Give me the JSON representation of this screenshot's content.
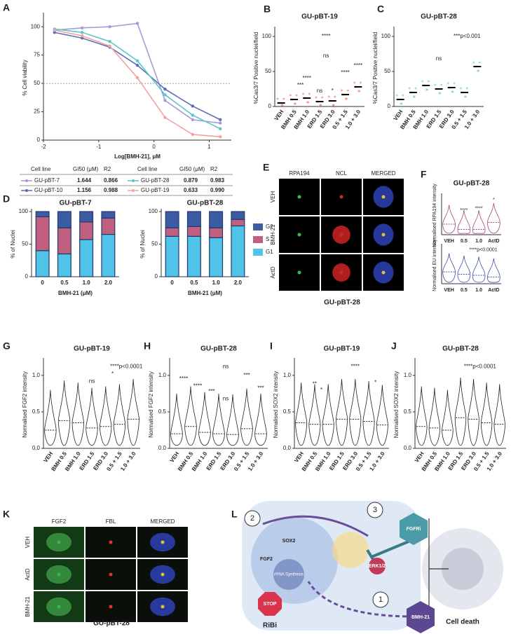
{
  "chart_data": [
    {
      "type": "line",
      "panel": "A",
      "xlabel": "Log[BMH-21], μM",
      "ylabel": "% Cell viability",
      "x": [
        -1.8,
        -1.3,
        -0.8,
        -0.3,
        0.2,
        0.7,
        1.2
      ],
      "xlim": [
        -2,
        1.4
      ],
      "xticks": [
        -2,
        -1,
        0,
        1
      ],
      "ylim": [
        0,
        110
      ],
      "yticks": [
        0,
        25,
        50,
        75,
        100
      ],
      "hline": 50,
      "series": [
        {
          "name": "GU-pBT-7",
          "color": "#a79ad8",
          "values": [
            97,
            99,
            100,
            103,
            35,
            18,
            15
          ],
          "gi50": "1.644",
          "r2": "0.866"
        },
        {
          "name": "GU-pBT-10",
          "color": "#5b6fb5",
          "values": [
            95,
            90,
            82,
            66,
            45,
            30,
            18
          ],
          "gi50": "1.156",
          "r2": "0.988"
        },
        {
          "name": "GU-pBT-28",
          "color": "#5cc6cc",
          "values": [
            98,
            95,
            87,
            70,
            40,
            22,
            10
          ],
          "gi50": "0.879",
          "r2": "0.983"
        },
        {
          "name": "GU-pBT-19",
          "color": "#f2a3a0",
          "values": [
            97,
            92,
            83,
            55,
            20,
            5,
            3
          ],
          "gi50": "0.633",
          "r2": "0.990"
        }
      ],
      "table_header": [
        "Cell line",
        "GI50 (μM)",
        "R2"
      ]
    },
    {
      "type": "strip",
      "panel": "B",
      "title": "GU-pBT-19",
      "ylabel": "%Cas3/7 Positive nuclei/field",
      "color": "#f08a7a",
      "categories": [
        "VEH",
        "BMH 0.5",
        "BMH 1.0",
        "ERD 1.5",
        "ERD 3.0",
        "0.5 + 1.5",
        "1.0 + 3.0"
      ],
      "values": [
        5,
        10,
        12,
        7,
        8,
        17,
        28
      ],
      "ylim": [
        0,
        110
      ],
      "yticks": [
        0,
        50,
        100
      ],
      "annotations": [
        "***",
        "****",
        "ns",
        "*",
        "****",
        "****",
        "ns",
        "****"
      ]
    },
    {
      "type": "strip",
      "panel": "C",
      "title": "GU-pBT-28",
      "ylabel": "%Cas3/7 Positive nuclei/field",
      "color": "#7fd0dd",
      "categories": [
        "VEH",
        "BMH 0.5",
        "BMH 1.0",
        "ERD 1.5",
        "ERD 3.0",
        "0.5 + 1.5",
        "1.0 + 3.0"
      ],
      "values": [
        10,
        20,
        30,
        25,
        27,
        20,
        57
      ],
      "ylim": [
        0,
        110
      ],
      "yticks": [
        0,
        50,
        100
      ],
      "annotations": [
        "***p<0.001",
        "ns"
      ]
    },
    {
      "type": "stacked_bar",
      "panel": "D",
      "title": "GU-pBT-7",
      "ylabel": "% of Nuclei",
      "xlabel": "BMH-21 (μM)",
      "categories": [
        "0",
        "0.5",
        "1.0",
        "2.0"
      ],
      "ylim": [
        0,
        100
      ],
      "yticks": [
        0,
        50,
        100
      ],
      "series": [
        {
          "name": "G1",
          "color": "#4fc3e8",
          "values": [
            40,
            35,
            57,
            65
          ]
        },
        {
          "name": "S",
          "color": "#c0607e",
          "values": [
            52,
            40,
            27,
            25
          ]
        },
        {
          "name": "G2",
          "color": "#3b5ba3",
          "values": [
            8,
            25,
            16,
            10
          ]
        }
      ]
    },
    {
      "type": "stacked_bar",
      "title": "GU-pBT-28",
      "ylabel": "% of Nuclei",
      "xlabel": "BMH-21 (μM)",
      "legend": "right",
      "categories": [
        "0",
        "0.5",
        "1.0",
        "2.0"
      ],
      "ylim": [
        0,
        100
      ],
      "yticks": [
        0,
        50,
        100
      ],
      "series": [
        {
          "name": "G1",
          "color": "#4fc3e8",
          "values": [
            62,
            62,
            60,
            78
          ]
        },
        {
          "name": "S",
          "color": "#c0607e",
          "values": [
            13,
            15,
            15,
            10
          ]
        },
        {
          "name": "G2",
          "color": "#3b5ba3",
          "values": [
            25,
            23,
            25,
            12
          ]
        }
      ]
    },
    {
      "type": "violin",
      "panel": "F",
      "title": "GU-pBT-28",
      "ylabel": "Normalised RPA194 intensity",
      "color": "#a8437e",
      "categories": [
        "VEH",
        "0.5",
        "1.0",
        "ActD"
      ],
      "values": [
        0.3,
        0.15,
        0.15,
        0.35
      ],
      "ylim": [
        0,
        1.1
      ],
      "annotations": [
        "****",
        "****",
        "*"
      ]
    },
    {
      "type": "violin",
      "ylabel": "Normalised EU intensity",
      "color": "#3b4fa8",
      "categories": [
        "VEH",
        "0.5",
        "1.0",
        "ActD"
      ],
      "values": [
        0.35,
        0.28,
        0.25,
        0.2
      ],
      "ylim": [
        0,
        1.1
      ],
      "annotations": [
        "****p<0.0001"
      ]
    },
    {
      "type": "violin",
      "panel": "G",
      "title": "GU-pBT-19",
      "ylabel": "Normalised FGF2 intensity",
      "color": "#222",
      "categories": [
        "VEH",
        "BMH 0.5",
        "BMH 1.0",
        "ERD 1.5",
        "ERD 3.0",
        "0.5 + 1.5",
        "1.0 + 3.0"
      ],
      "values": [
        0.25,
        0.38,
        0.35,
        0.28,
        0.3,
        0.33,
        0.4
      ],
      "ylim": [
        0,
        1.2
      ],
      "yticks": [
        {
          "value": 0,
          "label": "0.0"
        },
        0.5,
        {
          "value": 1,
          "label": "1.0"
        }
      ],
      "annotations": [
        "****p<0.0001",
        "ns",
        "*"
      ]
    },
    {
      "type": "violin",
      "panel": "H",
      "title": "GU-pBT-28",
      "ylabel": "Normalised FGF2 intensity",
      "color": "#222",
      "categories": [
        "VEH",
        "BMH 0.5",
        "BMH 1.0",
        "ERD 1.5",
        "ERD 3.0",
        "0.5 + 1.5",
        "1.0 + 3.0"
      ],
      "values": [
        0.2,
        0.3,
        0.22,
        0.2,
        0.19,
        0.27,
        0.2
      ],
      "ylim": [
        0,
        1.2
      ],
      "yticks": [
        {
          "value": 0,
          "label": "0.0"
        },
        0.5,
        {
          "value": 1,
          "label": "1.0"
        }
      ],
      "annotations": [
        "****",
        "ns",
        "****",
        "***",
        "***",
        "ns",
        "***"
      ]
    },
    {
      "type": "violin",
      "panel": "I",
      "title": "GU-pBT-19",
      "ylabel": "Normalised SOX2 intensity",
      "color": "#222",
      "categories": [
        "VEH",
        "BMH 0.5",
        "BMH 1.0",
        "ERD 1.5",
        "ERD 3.0",
        "0.5 + 1.5",
        "1.0 + 3.0"
      ],
      "values": [
        0.35,
        0.33,
        0.33,
        0.4,
        0.4,
        0.37,
        0.32
      ],
      "ylim": [
        0,
        1.2
      ],
      "yticks": [
        {
          "value": 0,
          "label": "0.0"
        },
        0.5,
        {
          "value": 1,
          "label": "1.0"
        }
      ],
      "annotations": [
        "**",
        "*",
        "****",
        "*"
      ]
    },
    {
      "type": "violin",
      "panel": "J",
      "title": "GU-pBT-28",
      "ylabel": "Normalised SOX2 intensity",
      "color": "#222",
      "categories": [
        "VEH",
        "BMH 0.5",
        "BMH 1.0",
        "ERD 1.5",
        "ERD 3.0",
        "0.5 + 1.5",
        "1.0 + 3.0"
      ],
      "values": [
        0.3,
        0.28,
        0.25,
        0.42,
        0.4,
        0.35,
        0.33
      ],
      "ylim": [
        0,
        1.2
      ],
      "yticks": [
        {
          "value": 0,
          "label": "0.0"
        },
        0.5,
        {
          "value": 1,
          "label": "1.0"
        }
      ],
      "annotations": [
        "****p<0.0001"
      ]
    }
  ],
  "images": [
    {
      "panel": "E",
      "columns": [
        "RPA194",
        "NCL",
        "MERGED"
      ],
      "rows": [
        "VEH",
        "BMH-21",
        "ActD"
      ],
      "caption": "GU-pBT-28"
    },
    {
      "panel": "K",
      "columns": [
        "FGF2",
        "FBL",
        "MERGED"
      ],
      "rows": [
        "VEH",
        "ActD",
        "BMH-21"
      ],
      "caption": "GU-pBT-28"
    }
  ],
  "diagram": {
    "panel": "L",
    "steps": [
      "1",
      "2",
      "3"
    ],
    "sox2": "SOX2",
    "fgf2": "FGF2",
    "rrna": "rRNA Synthesis",
    "stop": "STOP",
    "ribi": "RiBi",
    "erk": "ERK1/2",
    "fgfri": "FGFRi",
    "bmh": "BMH-21",
    "death": "Cell death"
  }
}
